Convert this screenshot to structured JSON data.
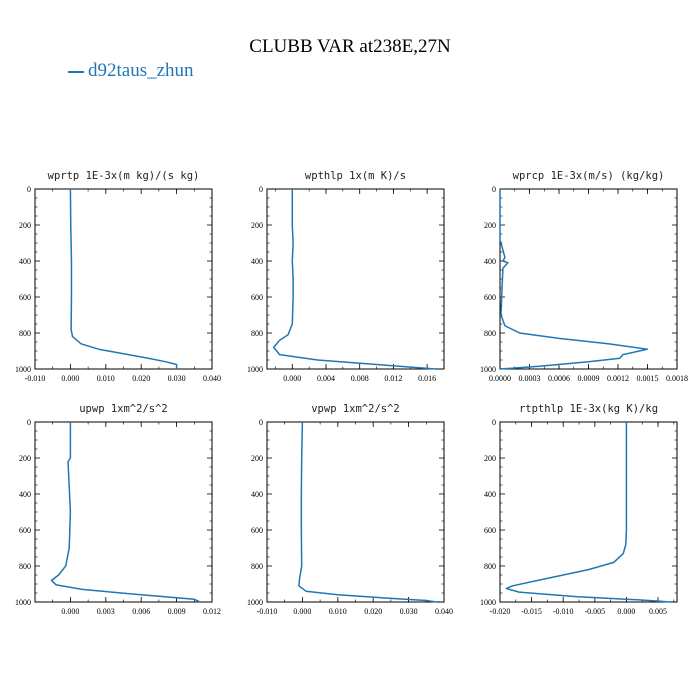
{
  "page": {
    "title": "CLUBB VAR at238E,27N",
    "legend_label": "d92taus_zhun",
    "line_color": "#1f77b4"
  },
  "chart_data": [
    {
      "type": "line",
      "title": "wprtp  1E-3x(m kg)/(s kg)",
      "xlim": [
        -0.01,
        0.04
      ],
      "ylim": [
        1000,
        0
      ],
      "xticks": [
        "-0.010",
        "0.000",
        "0.010",
        "0.020",
        "0.030",
        "0.040"
      ],
      "yticks": [
        "0",
        "200",
        "400",
        "600",
        "800",
        "1000"
      ],
      "series": [
        {
          "x": [
            0.0,
            0.0001,
            0.0003,
            0.0003,
            0.0002,
            0.0006,
            0.003,
            0.008,
            0.015,
            0.022,
            0.027,
            0.03,
            0.03
          ],
          "y": [
            0,
            200,
            400,
            600,
            780,
            820,
            860,
            890,
            915,
            940,
            960,
            975,
            1000
          ]
        }
      ]
    },
    {
      "type": "line",
      "title": "wpthlp  1x(m K)/s",
      "xlim": [
        -0.003,
        0.018
      ],
      "ylim": [
        1000,
        0
      ],
      "xticks": [
        "0.000",
        "0.004",
        "0.008",
        "0.012",
        "0.016"
      ],
      "xtick_values": [
        0.0,
        0.004,
        0.008,
        0.012,
        0.016
      ],
      "yticks": [
        "0",
        "200",
        "400",
        "600",
        "800",
        "1000"
      ],
      "series": [
        {
          "x": [
            0.0,
            0.0,
            0.0001,
            0.0,
            0.0001,
            0.0001,
            0.0,
            -0.0005,
            -0.0015,
            -0.0022,
            -0.0015,
            0.003,
            0.01,
            0.017
          ],
          "y": [
            0,
            200,
            300,
            400,
            500,
            600,
            750,
            810,
            840,
            880,
            920,
            950,
            975,
            1000
          ]
        }
      ]
    },
    {
      "type": "line",
      "title": "wprcp  1E-3x(m/s) (kg/kg)",
      "xlim": [
        0.0,
        0.0018
      ],
      "ylim": [
        1000,
        0
      ],
      "xticks": [
        "0.0000",
        "0.0003",
        "0.0006",
        "0.0009",
        "0.0012",
        "0.0015",
        "0.0018"
      ],
      "yticks": [
        "0",
        "200",
        "400",
        "600",
        "800",
        "1000"
      ],
      "series": [
        {
          "x": [
            0.0,
            0.0,
            2e-05,
            5e-05,
            3e-05,
            8e-05,
            3e-05,
            2e-05,
            1e-05,
            5e-05,
            0.0002,
            0.0006,
            0.0011,
            0.0015,
            0.00125,
            0.00122,
            0.0009,
            0.0004,
            0.0
          ],
          "y": [
            0,
            280,
            320,
            380,
            400,
            410,
            440,
            560,
            700,
            760,
            800,
            830,
            860,
            890,
            920,
            940,
            960,
            985,
            1000
          ]
        }
      ]
    },
    {
      "type": "line",
      "title": "upwp  1xm^2/s^2",
      "xlim": [
        -0.003,
        0.012
      ],
      "ylim": [
        1000,
        0
      ],
      "xticks": [
        "0.000",
        "0.003",
        "0.006",
        "0.009",
        "0.012"
      ],
      "yticks": [
        "0",
        "200",
        "400",
        "600",
        "800",
        "1000"
      ],
      "series": [
        {
          "x": [
            0.0,
            0.0,
            -0.0002,
            0.0,
            -0.0001,
            -0.0004,
            -0.001,
            -0.0016,
            -0.0012,
            0.001,
            0.006,
            0.0105,
            0.011
          ],
          "y": [
            0,
            200,
            220,
            500,
            700,
            800,
            850,
            880,
            905,
            930,
            960,
            985,
            1000
          ]
        }
      ]
    },
    {
      "type": "line",
      "title": "vpwp  1xm^2/s^2",
      "xlim": [
        -0.01,
        0.04
      ],
      "ylim": [
        1000,
        0
      ],
      "xticks": [
        "-0.010",
        "0.000",
        "0.010",
        "0.020",
        "0.030",
        "0.040"
      ],
      "yticks": [
        "0",
        "200",
        "400",
        "600",
        "800",
        "1000"
      ],
      "series": [
        {
          "x": [
            0.0,
            -0.0002,
            -0.0003,
            -0.0003,
            -0.0002,
            -0.0008,
            -0.001,
            0.001,
            0.01,
            0.025,
            0.035,
            0.038
          ],
          "y": [
            0,
            200,
            400,
            600,
            800,
            870,
            910,
            940,
            960,
            980,
            992,
            1000
          ]
        }
      ]
    },
    {
      "type": "line",
      "title": "rtpthlp  1E-3x(kg K)/kg",
      "xlim": [
        -0.02,
        0.008
      ],
      "ylim": [
        1000,
        0
      ],
      "xticks": [
        "-0.020",
        "-0.015",
        "-0.010",
        "-0.005",
        "0.000",
        "0.005"
      ],
      "xtick_values": [
        -0.02,
        -0.015,
        -0.01,
        -0.005,
        0.0,
        0.005
      ],
      "yticks": [
        "0",
        "200",
        "400",
        "600",
        "800",
        "1000"
      ],
      "series": [
        {
          "x": [
            0.0,
            0.0,
            -0.0001,
            -0.0005,
            -0.002,
            -0.006,
            -0.01,
            -0.014,
            -0.018,
            -0.019,
            -0.017,
            -0.008,
            0.003,
            0.007
          ],
          "y": [
            0,
            600,
            680,
            730,
            780,
            820,
            850,
            880,
            910,
            925,
            945,
            970,
            990,
            1000
          ]
        }
      ]
    }
  ]
}
